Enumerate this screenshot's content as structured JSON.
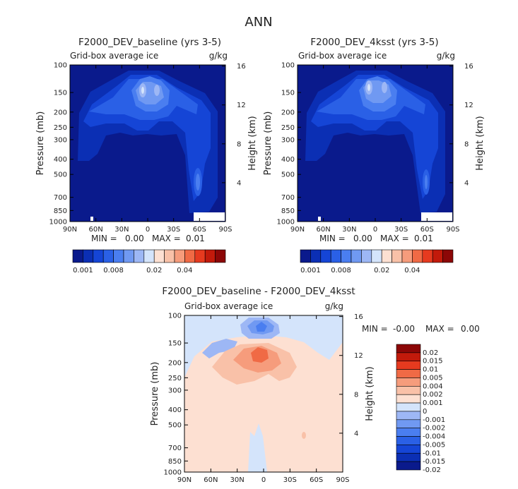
{
  "main_title": "ANN",
  "colors": {
    "frame": "#000000",
    "abs_scale": [
      "#0a1a8c",
      "#0b2fb4",
      "#1545d6",
      "#2a60e6",
      "#4a7ef0",
      "#7099f2",
      "#9db7f5",
      "#d4e4fb",
      "#fde0d2",
      "#f9c1a8",
      "#f69c7c",
      "#f06a45",
      "#e63a1f",
      "#c21a0b",
      "#8c0707"
    ],
    "diff_scale": [
      "#0a1a8c",
      "#0b2fb4",
      "#1545d6",
      "#2a60e6",
      "#4a7ef0",
      "#7099f2",
      "#9db7f5",
      "#d4e4fb",
      "#fde0d2",
      "#f9c1a8",
      "#f69c7c",
      "#f06a45",
      "#e63a1f",
      "#c21a0b",
      "#8c0707"
    ]
  },
  "chart_data": [
    {
      "type": "heatmap",
      "title": "F2000_DEV_baseline (yrs 3-5)",
      "subtitle_left": "Grid-box average ice",
      "subtitle_right": "g/kg",
      "xlabel": "",
      "ylabel": "Pressure (mb)",
      "ylabel_right": "Height (km)",
      "x_ticks": [
        "90N",
        "60N",
        "30N",
        "0",
        "30S",
        "60S",
        "90S"
      ],
      "x_values": [
        90,
        60,
        30,
        0,
        -30,
        -60,
        -90
      ],
      "y_ticks": [
        "100",
        "150",
        "200",
        "250",
        "300",
        "400",
        "500",
        "700",
        "850",
        "1000"
      ],
      "y_values": [
        100,
        150,
        200,
        250,
        300,
        400,
        500,
        700,
        850,
        1000
      ],
      "ylim": [
        1000,
        100
      ],
      "height_ticks": [
        "16",
        "12",
        "8",
        "4"
      ],
      "height_values": [
        16,
        12,
        8,
        4
      ],
      "min_label": "MIN =",
      "min_value": "0.00",
      "max_label": "MAX =",
      "max_value": "0.01",
      "colorbar": {
        "orientation": "horizontal",
        "labels": [
          "0.001",
          "0.008",
          "0.02",
          "0.04"
        ],
        "n_colors": 15
      }
    },
    {
      "type": "heatmap",
      "title": "F2000_DEV_4ksst (yrs 3-5)",
      "subtitle_left": "Grid-box average ice",
      "subtitle_right": "g/kg",
      "xlabel": "",
      "ylabel": "Pressure (mb)",
      "ylabel_right": "Height (km)",
      "x_ticks": [
        "90N",
        "60N",
        "30N",
        "0",
        "30S",
        "60S",
        "90S"
      ],
      "x_values": [
        90,
        60,
        30,
        0,
        -30,
        -60,
        -90
      ],
      "y_ticks": [
        "100",
        "150",
        "200",
        "250",
        "300",
        "400",
        "500",
        "700",
        "850",
        "1000"
      ],
      "y_values": [
        100,
        150,
        200,
        250,
        300,
        400,
        500,
        700,
        850,
        1000
      ],
      "ylim": [
        1000,
        100
      ],
      "height_ticks": [
        "16",
        "12",
        "8",
        "4"
      ],
      "height_values": [
        16,
        12,
        8,
        4
      ],
      "min_label": "MIN =",
      "min_value": "0.00",
      "max_label": "MAX =",
      "max_value": "0.01",
      "colorbar": {
        "orientation": "horizontal",
        "labels": [
          "0.001",
          "0.008",
          "0.02",
          "0.04"
        ],
        "n_colors": 15
      }
    },
    {
      "type": "heatmap",
      "title": "F2000_DEV_baseline - F2000_DEV_4ksst",
      "subtitle_left": "Grid-box average ice",
      "subtitle_right": "g/kg",
      "xlabel": "",
      "ylabel": "Pressure (mb)",
      "ylabel_right": "Height (km)",
      "x_ticks": [
        "90N",
        "60N",
        "30N",
        "0",
        "30S",
        "60S",
        "90S"
      ],
      "x_values": [
        90,
        60,
        30,
        0,
        -30,
        -60,
        -90
      ],
      "y_ticks": [
        "100",
        "150",
        "200",
        "250",
        "300",
        "400",
        "500",
        "700",
        "850",
        "1000"
      ],
      "y_values": [
        100,
        150,
        200,
        250,
        300,
        400,
        500,
        700,
        850,
        1000
      ],
      "ylim": [
        1000,
        100
      ],
      "height_ticks": [
        "16",
        "12",
        "8",
        "4"
      ],
      "height_values": [
        16,
        12,
        8,
        4
      ],
      "min_label": "MIN =",
      "min_value": "-0.00",
      "max_label": "MAX =",
      "max_value": "0.00",
      "colorbar": {
        "orientation": "vertical",
        "labels": [
          "0.02",
          "0.015",
          "0.01",
          "0.005",
          "0.004",
          "0.002",
          "0.001",
          "0",
          "-0.001",
          "-0.002",
          "-0.004",
          "-0.005",
          "-0.01",
          "-0.015",
          "-0.02"
        ],
        "n_colors": 15
      }
    }
  ]
}
